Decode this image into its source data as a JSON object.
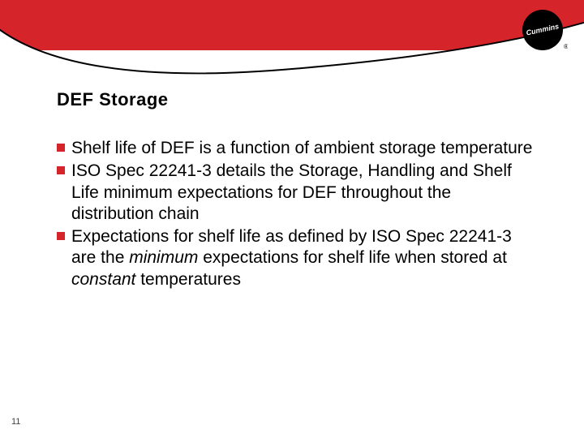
{
  "colors": {
    "brand_red": "#d6242b",
    "bg": "#ffffff",
    "text": "#000000"
  },
  "logo": {
    "name": "Cummins",
    "text": "Cummins",
    "registered": "®"
  },
  "title": {
    "text": "DEF Storage",
    "fontsize": 22,
    "weight": "900"
  },
  "bullets": {
    "fontsize": 21,
    "line_height": 1.25,
    "marker_color": "#d6242b",
    "items": [
      {
        "segments": [
          {
            "t": "Shelf life of DEF is a function of ambient storage temperature"
          }
        ]
      },
      {
        "segments": [
          {
            "t": "ISO Spec 22241-3 details the Storage, Handling and Shelf Life minimum expectations for DEF throughout the distribution chain"
          }
        ]
      },
      {
        "segments": [
          {
            "t": "Expectations for shelf life as defined by ISO Spec 22241-3 are the "
          },
          {
            "t": "minimum",
            "italic": true
          },
          {
            "t": " expectations for shelf life when stored at "
          },
          {
            "t": "constant",
            "italic": true
          },
          {
            "t": " temperatures"
          }
        ]
      }
    ]
  },
  "page_number": "11"
}
